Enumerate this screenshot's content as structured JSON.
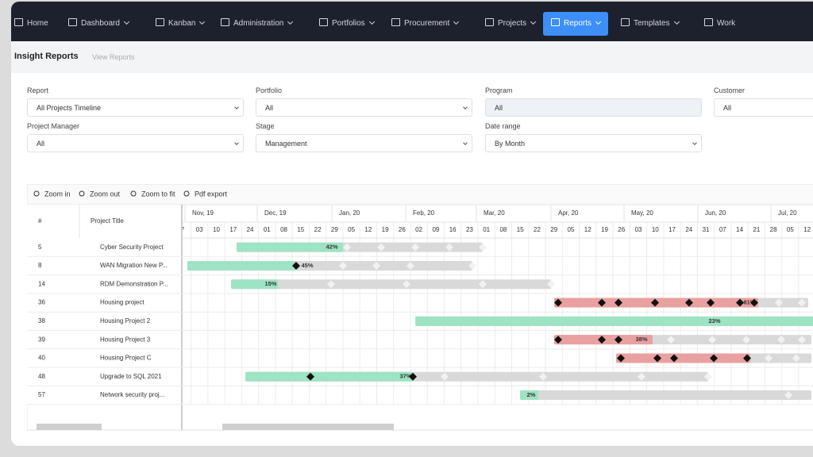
{
  "nav": [
    "Home",
    "Dashboard",
    "Kanban",
    "Administration",
    "Portfolios",
    "Procurement",
    "Projects",
    "Reports",
    "Templates",
    "Work"
  ],
  "header": {
    "title": "Insight Reports",
    "link": "View Reports"
  },
  "filters": [
    {
      "label": "Report",
      "value": "All Projects Timeline"
    },
    {
      "label": "Portfolio",
      "value": "All"
    },
    {
      "label": "Program",
      "value": "All"
    },
    {
      "label": "Customer",
      "value": "All"
    },
    {
      "label": "Project Manager",
      "value": "All"
    },
    {
      "label": "Stage",
      "value": "Management"
    },
    {
      "label": "Date range",
      "value": "By Month"
    }
  ],
  "toolbar": [
    "Zoom in",
    "Zoom out",
    "Zoom to fit",
    "Pdf export"
  ],
  "gantt": {
    "columns": [
      "#",
      "Project Title"
    ],
    "months": [
      "Nov, 19",
      "Dec, 19",
      "Jan, 20",
      "Feb, 20",
      "Mar, 20",
      "Apr, 20",
      "May, 20",
      "Jun, 20",
      "Jul, 20"
    ],
    "days": [
      "7",
      "03",
      "10",
      "17",
      "24",
      "01",
      "08",
      "15",
      "22",
      "29",
      "05",
      "12",
      "19",
      "26",
      "02",
      "09",
      "16",
      "23",
      "01",
      "08",
      "15",
      "22",
      "29",
      "05",
      "12",
      "19",
      "26",
      "03",
      "10",
      "17",
      "24",
      "31",
      "07",
      "14",
      "21",
      "28",
      "05",
      "12"
    ],
    "rows": [
      {
        "id": "5",
        "title": "Cyber Security Project",
        "progress": "42%"
      },
      {
        "id": "8",
        "title": "WAN Migration New P...",
        "progress": "45%"
      },
      {
        "id": "14",
        "title": "RDM Demonstration P...",
        "progress": "15%"
      },
      {
        "id": "36",
        "title": "Housing project",
        "progress": "81%"
      },
      {
        "id": "38",
        "title": "Housing Project 2",
        "progress": "23%"
      },
      {
        "id": "39",
        "title": "Housing Project 3",
        "progress": "38%"
      },
      {
        "id": "40",
        "title": "Housing Project C"
      },
      {
        "id": "48",
        "title": "Upgrade to SQL 2021",
        "progress": "37%"
      },
      {
        "id": "57",
        "title": "Network security proj...",
        "progress": "2%"
      }
    ]
  }
}
